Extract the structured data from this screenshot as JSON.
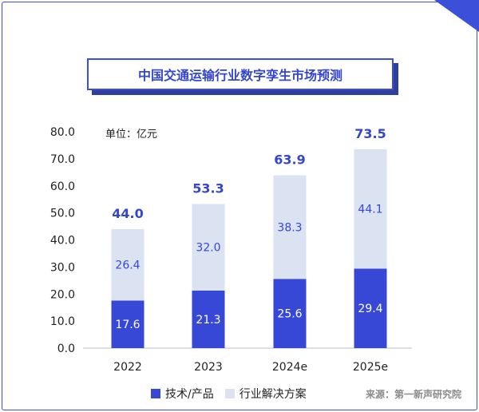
{
  "chart_data": {
    "type": "bar",
    "stacked": true,
    "title": "中国交通运输行业数字孪生市场预测",
    "unit_label": "单位：亿元",
    "categories": [
      "2022",
      "2023",
      "2024e",
      "2025e"
    ],
    "series": [
      {
        "name": "技术/产品",
        "values": [
          17.6,
          21.3,
          25.6,
          29.4
        ],
        "color": "#3747d6",
        "label_color": "#ffffff"
      },
      {
        "name": "行业解决方案",
        "values": [
          26.4,
          32.0,
          38.3,
          44.1
        ],
        "color": "#dbe2f2",
        "label_color": "#3747d6"
      }
    ],
    "totals": [
      44.0,
      53.3,
      63.9,
      73.5
    ],
    "ylim": [
      0,
      80
    ],
    "yticks": [
      "0.0",
      "10.0",
      "20.0",
      "30.0",
      "40.0",
      "50.0",
      "60.0",
      "70.0",
      "80.0"
    ],
    "grid": false,
    "legend_position": "bottom",
    "source": "来源：第一新声研究院"
  },
  "colors": {
    "accent": "#3b4fd9",
    "total_label": "#3447c9"
  }
}
